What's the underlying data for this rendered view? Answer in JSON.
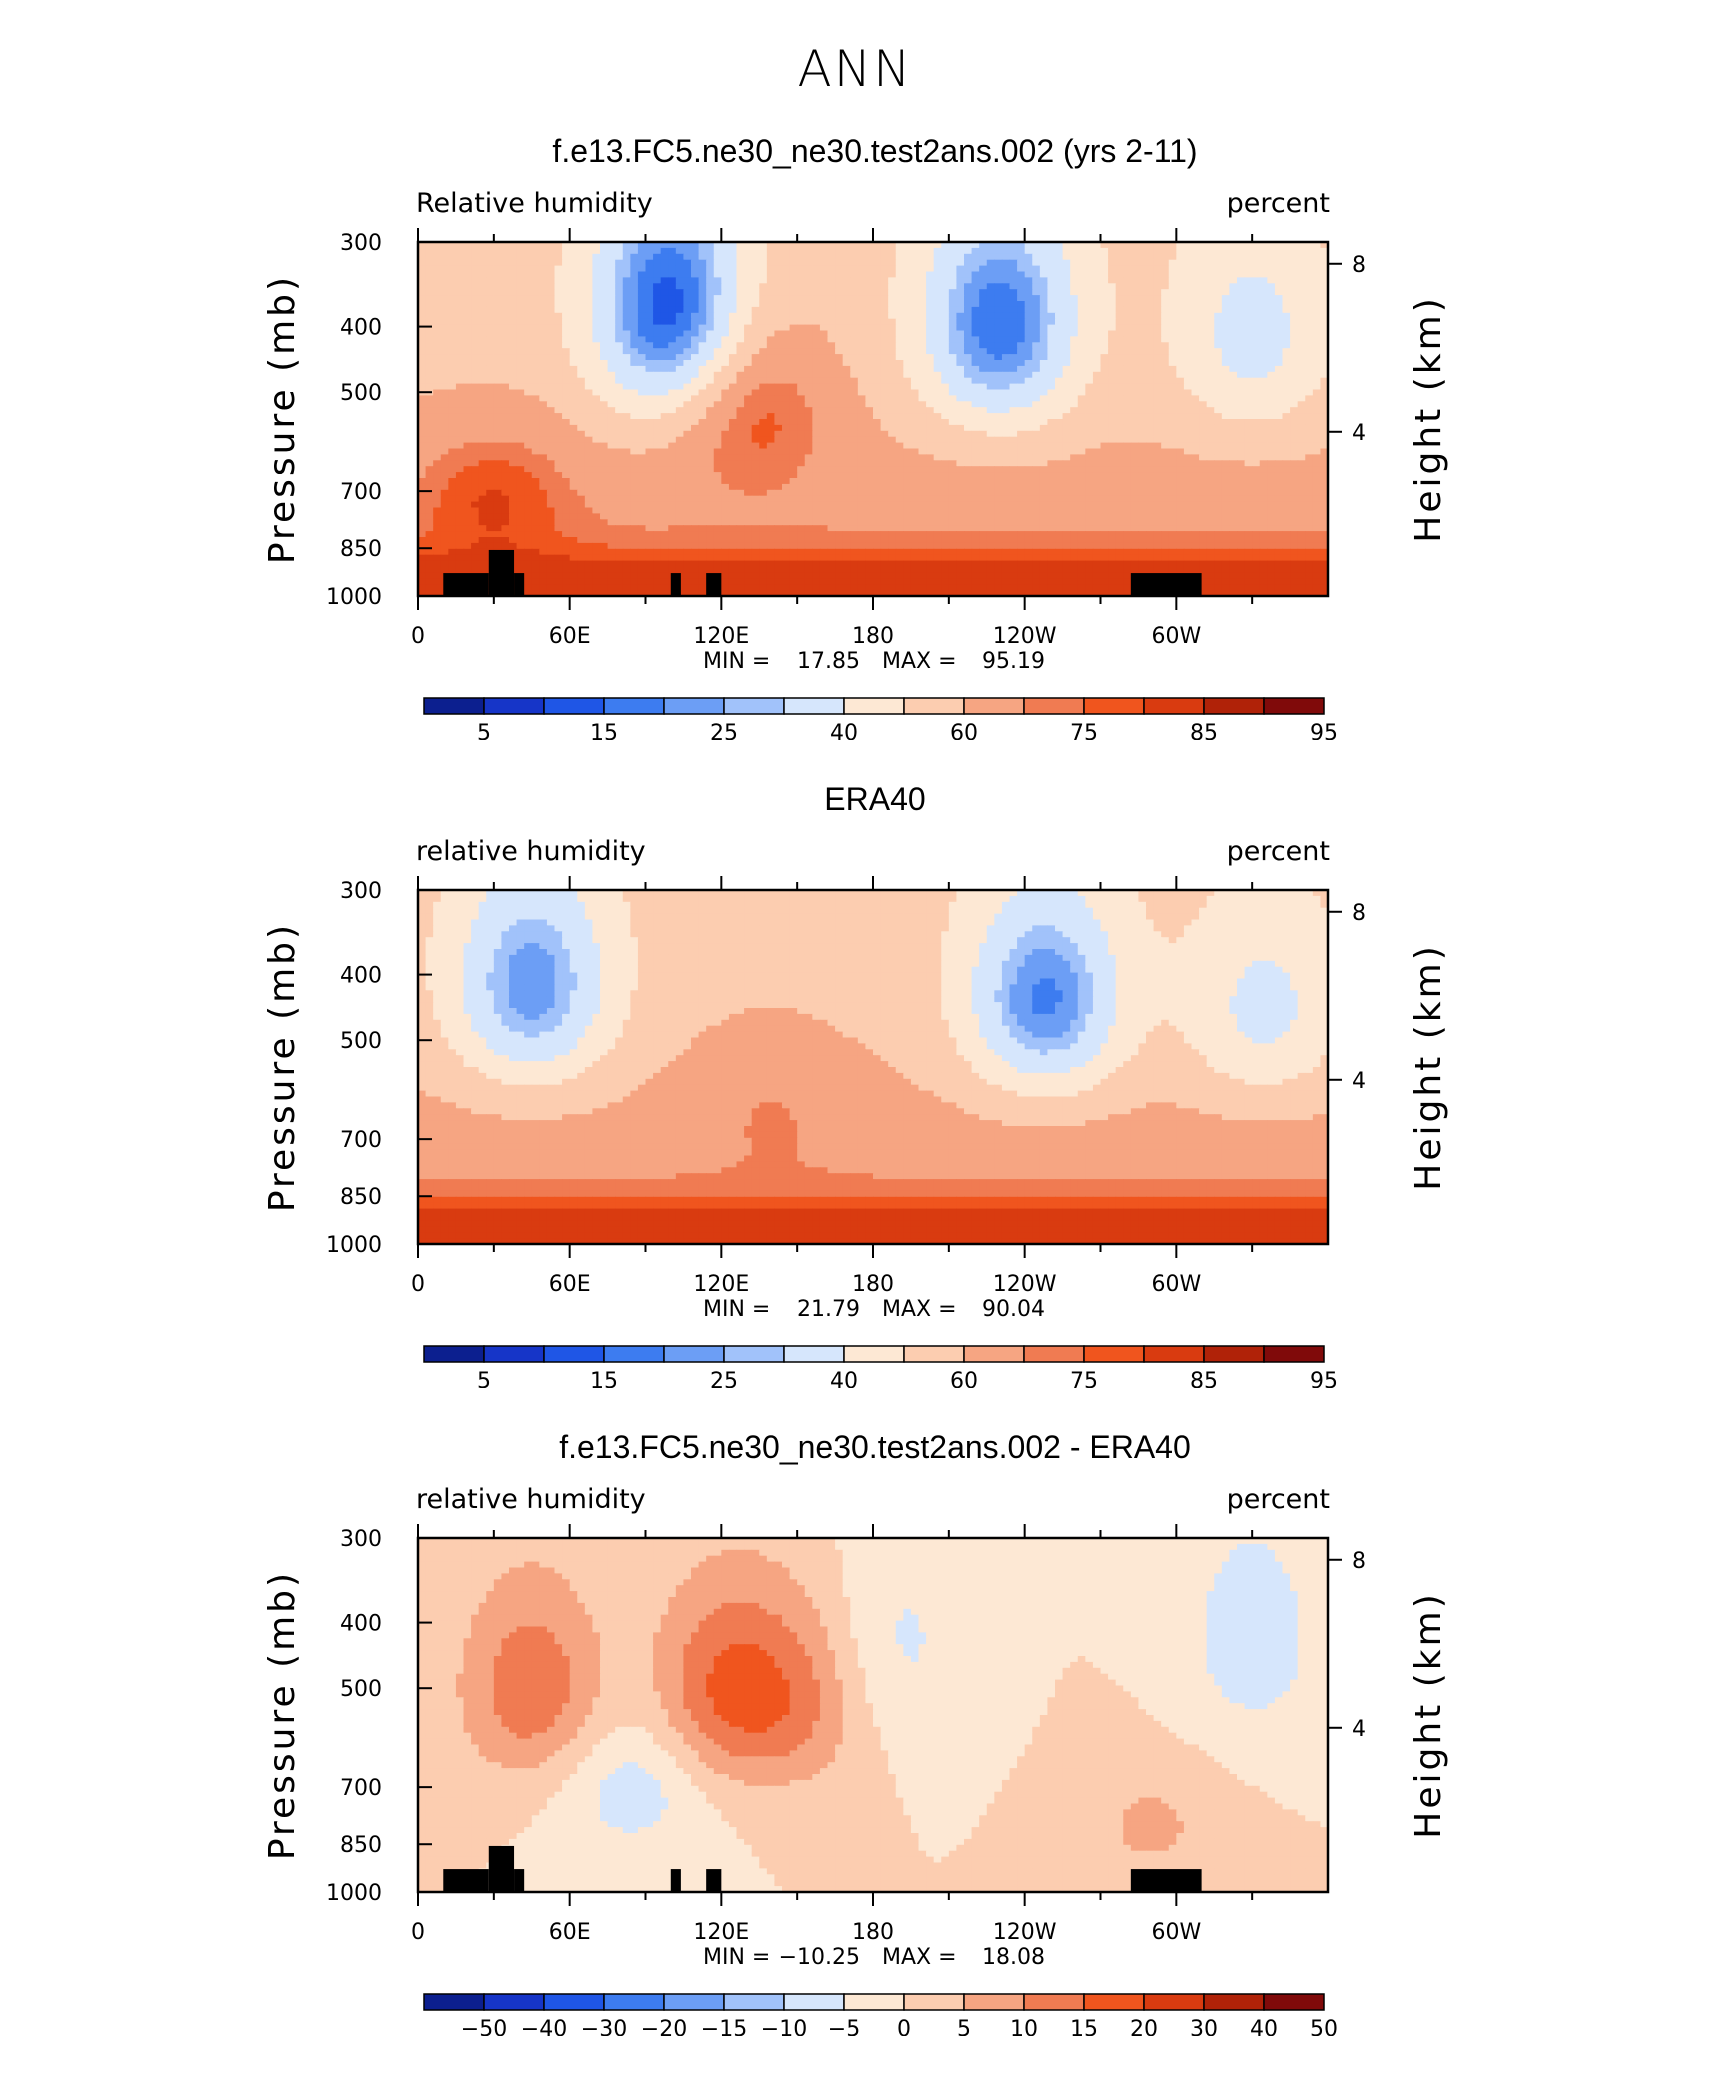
{
  "page_title": "ANN",
  "chart_data": [
    {
      "type": "heatmap",
      "title": "f.e13.FC5.ne30_ne30.test2ans.002 (yrs 2-11)",
      "left_label": "Relative humidity",
      "right_label": "percent",
      "ylabel": "Pressure (mb)",
      "y2label": "Height (km)",
      "pressure_ticks": [
        "300",
        "400",
        "500",
        "700",
        "850",
        "1000"
      ],
      "height_ticks": [
        "8",
        "4"
      ],
      "x_ticks": [
        "0",
        "60E",
        "120E",
        "180",
        "120W",
        "60W"
      ],
      "stats": {
        "min_label": "MIN =",
        "min": "17.85",
        "max_label": "MAX =",
        "max": "95.19"
      },
      "colorbar_labels": [
        "5",
        "15",
        "25",
        "40",
        "60",
        "75",
        "85",
        "95"
      ],
      "terrain": true,
      "features": [
        {
          "lon": 100,
          "p": 380,
          "a": -45
        },
        {
          "lon": 230,
          "p": 400,
          "a": -40
        },
        {
          "lon": 330,
          "p": 420,
          "a": -20
        },
        {
          "lon": 132,
          "p": 520,
          "a": 20
        },
        {
          "lon": 30,
          "p": 700,
          "a": 15
        }
      ]
    },
    {
      "type": "heatmap",
      "title": "ERA40",
      "left_label": "relative humidity",
      "right_label": "percent",
      "ylabel": "Pressure (mb)",
      "y2label": "Height (km)",
      "pressure_ticks": [
        "300",
        "400",
        "500",
        "700",
        "850",
        "1000"
      ],
      "height_ticks": [
        "8",
        "4"
      ],
      "x_ticks": [
        "0",
        "60E",
        "120E",
        "180",
        "120W",
        "60W"
      ],
      "stats": {
        "min_label": "MIN =",
        "min": "21.79",
        "max_label": "MAX =",
        "max": "90.04"
      },
      "colorbar_labels": [
        "5",
        "15",
        "25",
        "40",
        "60",
        "75",
        "85",
        "95"
      ],
      "terrain": false,
      "features": [
        {
          "lon": 45,
          "p": 420,
          "a": -35
        },
        {
          "lon": 248,
          "p": 440,
          "a": -38
        },
        {
          "lon": 335,
          "p": 460,
          "a": -20
        },
        {
          "lon": 140,
          "p": 600,
          "a": 8
        }
      ]
    },
    {
      "type": "heatmap",
      "title": "f.e13.FC5.ne30_ne30.test2ans.002 - ERA40",
      "left_label": "relative humidity",
      "right_label": "percent",
      "ylabel": "Pressure (mb)",
      "y2label": "Height (km)",
      "pressure_ticks": [
        "300",
        "400",
        "500",
        "700",
        "850",
        "1000"
      ],
      "height_ticks": [
        "8",
        "4"
      ],
      "x_ticks": [
        "0",
        "60E",
        "120E",
        "180",
        "120W",
        "60W"
      ],
      "stats": {
        "min_label": "MIN =",
        "min": "−10.25",
        "max_label": "MAX =",
        "max": "18.08"
      },
      "colorbar_labels": [
        "−50",
        "−40",
        "−30",
        "−20",
        "−15",
        "−10",
        "−5",
        "0",
        "5",
        "10",
        "15",
        "20",
        "30",
        "40",
        "50"
      ],
      "terrain": true,
      "features": [
        {
          "lon": 45,
          "p": 500,
          "a": 14
        },
        {
          "lon": 120,
          "p": 500,
          "a": 14
        },
        {
          "lon": 150,
          "p": 520,
          "a": 10
        },
        {
          "lon": 85,
          "p": 700,
          "a": -8
        },
        {
          "lon": 190,
          "p": 430,
          "a": -6
        },
        {
          "lon": 330,
          "p": 420,
          "a": -8
        },
        {
          "lon": 290,
          "p": 800,
          "a": 6
        }
      ]
    }
  ]
}
